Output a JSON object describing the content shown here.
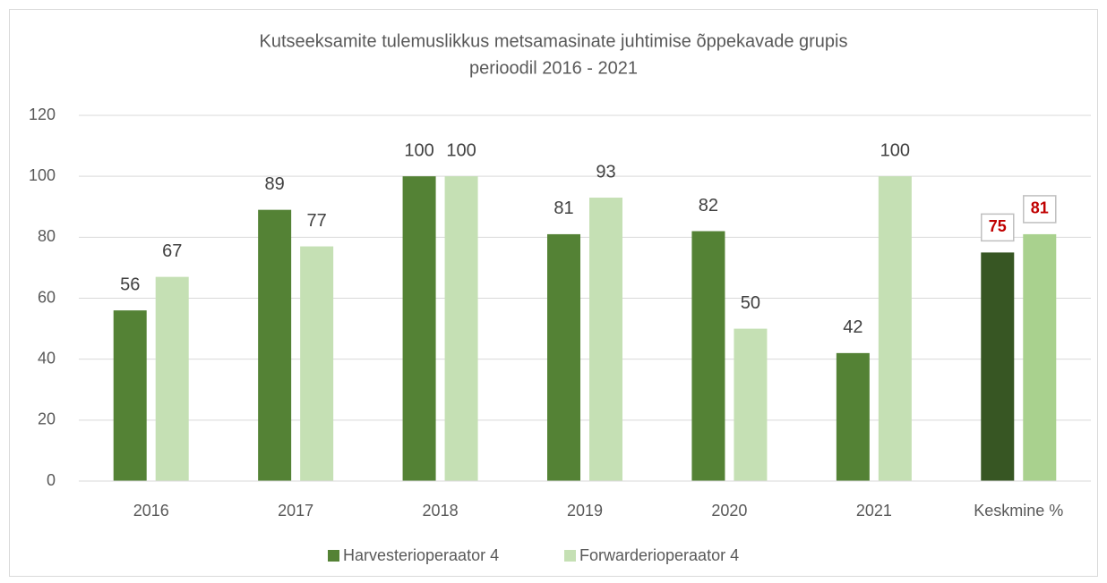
{
  "chart_data": {
    "type": "bar",
    "title": [
      "Kutseeksamite tulemuslikkus metsamasinate juhtimise õppekavade grupis",
      "perioodil 2016 - 2021"
    ],
    "categories": [
      "2016",
      "2017",
      "2018",
      "2019",
      "2020",
      "2021",
      "Keskmine %"
    ],
    "series": [
      {
        "name": "Harvesterioperaator 4",
        "color": "#548235",
        "colors": [
          "#548235",
          "#548235",
          "#548235",
          "#548235",
          "#548235",
          "#548235",
          "#375623"
        ],
        "label_colors": [
          "#404040",
          "#404040",
          "#404040",
          "#404040",
          "#404040",
          "#404040",
          "#c00000"
        ],
        "label_boxed": [
          false,
          false,
          false,
          false,
          false,
          false,
          true
        ],
        "values": [
          56,
          89,
          100,
          81,
          82,
          42,
          75
        ]
      },
      {
        "name": "Forwarderioperaator 4",
        "color": "#c5e0b4",
        "colors": [
          "#c5e0b4",
          "#c5e0b4",
          "#c5e0b4",
          "#c5e0b4",
          "#c5e0b4",
          "#c5e0b4",
          "#a9d18e"
        ],
        "label_colors": [
          "#404040",
          "#404040",
          "#404040",
          "#404040",
          "#404040",
          "#404040",
          "#c00000"
        ],
        "label_boxed": [
          false,
          false,
          false,
          false,
          false,
          false,
          true
        ],
        "values": [
          67,
          77,
          100,
          93,
          50,
          100,
          81
        ]
      }
    ],
    "ylim": [
      0,
      120
    ],
    "yticks": [
      0,
      20,
      40,
      60,
      80,
      100,
      120
    ],
    "grid": true,
    "legend": "bottom"
  }
}
